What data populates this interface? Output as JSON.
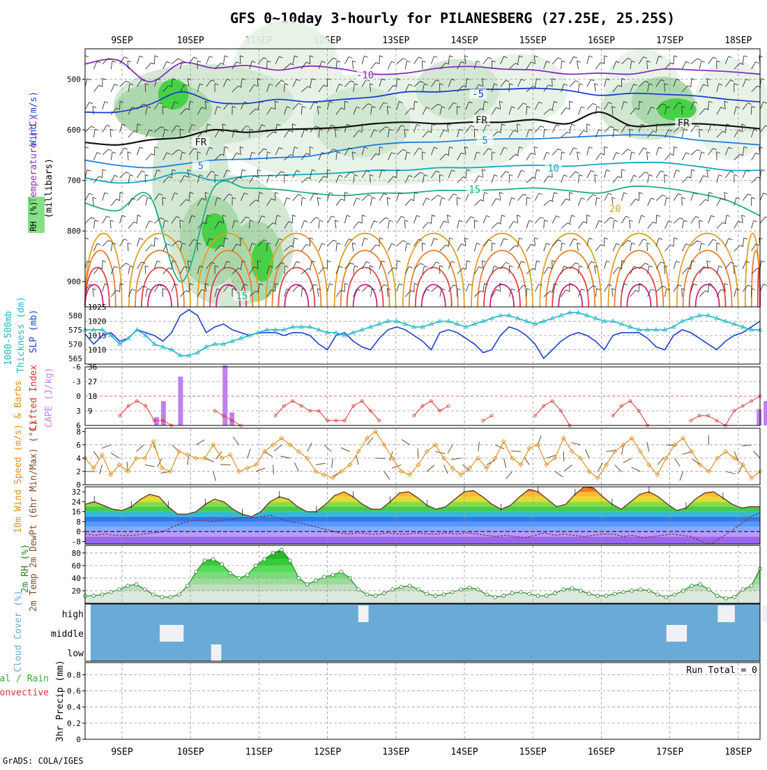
{
  "page": {
    "title": "GFS 0~10day 3-hourly for PILANESBERG (27.25E, 25.25S)",
    "credit": "GrADS: COLA/IGES"
  },
  "colors": {
    "grid": "#999999",
    "temperature_labels": "#e07030",
    "rh_green": "#33cc33",
    "slp": "#1a3fd0",
    "thickness": "#22b5c8",
    "lifted_index": "#e03030",
    "cape": "#c080f0",
    "wind_speed": "#e09020",
    "wind_barbs": "#6b4a2a",
    "rh2m": "#228822",
    "cloud_blue": "#6aaad6",
    "cloud_clear": "#f0f0f5",
    "precip_total": "#30b030",
    "precip_convective": "#e03030"
  },
  "chart_data": [
    {
      "type": "heatmap",
      "panel": "upper-air",
      "x_ticks": [
        "9SEP",
        "10SEP",
        "11SEP",
        "12SEP",
        "13SEP",
        "14SEP",
        "15SEP",
        "16SEP",
        "17SEP",
        "18SEP"
      ],
      "ylabel": "(millibars)",
      "y_ticks": [
        500,
        600,
        700,
        800,
        900
      ],
      "ylim": [
        440,
        950
      ],
      "legend": {
        "rh": "RH (%)",
        "temperature": "Temperature (°C)",
        "wind": "Wind (m/s)"
      },
      "contour_labels": [
        {
          "text": "-10",
          "color": "#8a2bbf",
          "day": 3.55,
          "p": 496
        },
        {
          "text": "-5",
          "color": "#1a3fd0",
          "day": 5.2,
          "p": 533
        },
        {
          "text": "FR",
          "color": "#111111",
          "day": 5.25,
          "p": 585
        },
        {
          "text": "FR",
          "color": "#111111",
          "day": 1.15,
          "p": 628
        },
        {
          "text": "FR",
          "color": "#111111",
          "day": 8.2,
          "p": 590
        },
        {
          "text": "5",
          "color": "#1e7fe0",
          "day": 5.3,
          "p": 625
        },
        {
          "text": "5",
          "color": "#1e7fe0",
          "day": 1.15,
          "p": 675
        },
        {
          "text": "10",
          "color": "#12a8c0",
          "day": 6.3,
          "p": 680
        },
        {
          "text": "15",
          "color": "#20b080",
          "day": 5.15,
          "p": 722
        },
        {
          "text": "20",
          "color": "#e0a020",
          "day": 7.2,
          "p": 760
        },
        {
          "text": "15",
          "color": "#20b080",
          "day": 1.75,
          "p": 932
        }
      ],
      "isotherms": [
        {
          "label": "-10",
          "color": "#8a2bbf",
          "p": [
            470,
            462,
            505,
            468,
            478,
            473,
            482,
            474,
            480,
            490,
            488,
            478,
            475,
            480,
            482,
            490,
            488,
            490,
            480,
            482,
            485,
            490
          ]
        },
        {
          "label": "-5",
          "color": "#1a3fd0",
          "p": [
            565,
            565,
            550,
            525,
            545,
            548,
            540,
            545,
            540,
            535,
            525,
            525,
            520,
            520,
            518,
            522,
            532,
            528,
            530,
            533,
            540,
            545
          ]
        },
        {
          "label": "FR",
          "color": "#111111",
          "p": [
            625,
            630,
            620,
            615,
            600,
            605,
            600,
            598,
            595,
            588,
            585,
            588,
            585,
            585,
            580,
            588,
            565,
            592,
            590,
            588,
            592,
            598
          ]
        },
        {
          "label": "5",
          "color": "#1e7fe0",
          "p": [
            660,
            670,
            675,
            668,
            660,
            658,
            655,
            652,
            640,
            630,
            625,
            624,
            620,
            618,
            618,
            615,
            612,
            610,
            612,
            620,
            625,
            630
          ]
        },
        {
          "label": "10",
          "color": "#12a8c0",
          "p": [
            695,
            705,
            700,
            685,
            700,
            692,
            690,
            688,
            685,
            680,
            680,
            675,
            675,
            672,
            670,
            672,
            668,
            665,
            665,
            672,
            680,
            680
          ]
        },
        {
          "label": "15",
          "color": "#20b080",
          "p": [
            745,
            760,
            730,
            900,
            715,
            715,
            718,
            725,
            730,
            725,
            725,
            720,
            720,
            718,
            715,
            720,
            725,
            712,
            715,
            725,
            740,
            770
          ]
        }
      ]
    },
    {
      "type": "line",
      "panel": "slp-thickness",
      "ylabel_left": "Thickness (dm)",
      "ylabel_left2": "1000-500mb",
      "ylabel_right": "SLP (mb)",
      "left_ticks": [
        565,
        570,
        575,
        580
      ],
      "right_ticks": [
        1010,
        1015,
        1020,
        1025
      ],
      "series": [
        {
          "name": "SLP (mb)",
          "axis": "right",
          "values": [
            1015.5,
            1012,
            1015,
            1016,
            1013,
            1014,
            1017,
            1016,
            1015,
            1013,
            1016,
            1022,
            1024,
            1022,
            1016,
            1018,
            1019,
            1017,
            1016,
            1015,
            1016,
            1016,
            1016,
            1015,
            1016,
            1016,
            1015,
            1012,
            1010,
            1015,
            1016,
            1013,
            1011,
            1010,
            1014,
            1017,
            1018,
            1017,
            1015,
            1013,
            1010,
            1016,
            1017,
            1016,
            1014,
            1012,
            1009,
            1010,
            1015,
            1018,
            1017,
            1015,
            1012,
            1007,
            1010,
            1013,
            1015,
            1016,
            1015,
            1013,
            1010,
            1015,
            1016,
            1016,
            1016,
            1014,
            1011,
            1010,
            1015,
            1017,
            1016,
            1014,
            1012,
            1010,
            1013,
            1015,
            1016,
            1018,
            1020
          ]
        },
        {
          "name": "Thickness (dm)",
          "axis": "left",
          "values": [
            575,
            575,
            575,
            573,
            570,
            572,
            575,
            573,
            570,
            569,
            568,
            566,
            566,
            567,
            569,
            570,
            570,
            571,
            572,
            573,
            574,
            575,
            575,
            575,
            576,
            576,
            576,
            575,
            574,
            574,
            573,
            574,
            575,
            576,
            577,
            578,
            578,
            577,
            576,
            576,
            577,
            578,
            578,
            577,
            576,
            577,
            578,
            579,
            580,
            580,
            579,
            578,
            577,
            578,
            579,
            580,
            581,
            581,
            580,
            579,
            578,
            578,
            577,
            576,
            575,
            575,
            575,
            575,
            576,
            578,
            579,
            580,
            580,
            579,
            578,
            577,
            576,
            575,
            575
          ]
        }
      ]
    },
    {
      "type": "bar",
      "panel": "lifted-index-cape",
      "ylabel_left": "Lifted Index",
      "ylabel_right": "CAPE (J/kg)",
      "left_ticks": [
        -6,
        -3,
        0,
        3,
        6
      ],
      "right_ticks": [
        9,
        18,
        27,
        36
      ],
      "cape_bars": [
        {
          "day": 0.5,
          "value": 5
        },
        {
          "day": 0.6,
          "value": 15
        },
        {
          "day": 0.85,
          "value": 30
        },
        {
          "day": 1.5,
          "value": 37
        },
        {
          "day": 1.6,
          "value": 8
        },
        {
          "day": 9.3,
          "value": 10
        },
        {
          "day": 9.4,
          "value": 15
        }
      ],
      "lifted_index": [
        null,
        null,
        null,
        null,
        4,
        2,
        1,
        2,
        5,
        5,
        6,
        null,
        null,
        null,
        null,
        3,
        4,
        5,
        6,
        null,
        null,
        null,
        4,
        2,
        1,
        2,
        3,
        3,
        5,
        5,
        5,
        2,
        1,
        3,
        5,
        null,
        null,
        null,
        4,
        2,
        1,
        3,
        2,
        null,
        null,
        null,
        5,
        4,
        null,
        null,
        null,
        null,
        4,
        2,
        1,
        3,
        6,
        null,
        null,
        null,
        null,
        4,
        2,
        1,
        3,
        6,
        null,
        null,
        null,
        null,
        5,
        4,
        4,
        5,
        6,
        3,
        2,
        1,
        0
      ]
    },
    {
      "type": "line",
      "panel": "wind-10m",
      "ylabel": "10m Wind Speed (m/s) & Barbs",
      "y_ticks": [
        0,
        2,
        4,
        6,
        8
      ],
      "series": [
        {
          "name": "10m Wind Speed",
          "values": [
            4,
            2.5,
            4.5,
            1.5,
            3,
            2,
            4,
            4,
            6.5,
            2.5,
            2,
            5,
            4.5,
            4,
            4,
            6,
            4,
            4.5,
            2,
            2.5,
            3,
            5,
            6,
            7,
            6,
            5,
            4,
            2,
            1.5,
            1,
            2,
            3,
            5,
            7,
            8,
            6,
            4,
            2,
            1.5,
            3,
            5,
            6,
            4,
            2.5,
            1.5,
            2.5,
            4,
            2.5,
            4,
            6.5,
            4,
            3,
            5.5,
            6,
            3,
            4,
            7,
            5,
            4,
            2,
            1,
            3,
            5,
            6,
            7,
            5,
            3,
            1.5,
            4,
            6,
            7,
            5,
            3,
            2,
            4,
            5,
            4,
            3,
            1,
            2
          ]
        }
      ]
    },
    {
      "type": "area",
      "panel": "temp-2m",
      "ylabel": "2m Temp 2m DewPt (6hr Min/Max) (°C)",
      "y_ticks": [
        -8,
        0,
        8,
        16,
        24,
        32
      ],
      "series": [
        {
          "name": "2m Temp",
          "values": [
            22,
            24,
            21,
            18,
            17,
            20,
            26,
            30,
            28,
            20,
            14,
            14,
            16,
            22,
            26,
            24,
            18,
            14,
            12,
            16,
            24,
            28,
            26,
            20,
            16,
            16,
            22,
            29,
            32,
            28,
            22,
            18,
            18,
            24,
            31,
            32,
            27,
            21,
            18,
            20,
            26,
            32,
            33,
            28,
            22,
            18,
            21,
            28,
            34,
            32,
            26,
            20,
            22,
            30,
            36,
            35,
            28,
            22,
            18,
            24,
            30,
            32,
            28,
            22,
            17,
            19,
            26,
            31,
            32,
            27,
            22,
            19,
            20,
            20
          ]
        },
        {
          "name": "2m DewPt",
          "values": [
            -2,
            -3,
            -2,
            -3,
            -3,
            -3,
            -2,
            -1,
            0,
            4,
            7,
            9,
            9,
            8,
            9,
            10,
            11,
            11,
            12,
            13,
            10,
            8,
            7,
            5,
            3,
            1,
            -1,
            -2,
            -1,
            -2,
            -2,
            -1,
            -2,
            -2,
            -1,
            -2,
            -2,
            -1,
            -2,
            -1,
            -2,
            -3,
            -4,
            -3,
            -4,
            -5,
            -3,
            -1,
            -3,
            -2,
            -3,
            -4,
            -3,
            -2,
            -2,
            -4,
            -3,
            -5,
            -4,
            -3,
            -2,
            -3,
            -4,
            -8,
            -10,
            -5,
            0,
            6,
            12,
            15
          ]
        }
      ]
    },
    {
      "type": "area",
      "panel": "rh-2m",
      "ylabel": "2m RH (%)",
      "y_ticks": [
        20,
        40,
        60,
        80
      ],
      "series": [
        {
          "name": "2m RH",
          "values": [
            12,
            12,
            14,
            18,
            22,
            28,
            30,
            22,
            14,
            10,
            10,
            14,
            28,
            50,
            68,
            70,
            62,
            48,
            40,
            45,
            60,
            70,
            80,
            85,
            68,
            40,
            30,
            36,
            42,
            45,
            50,
            40,
            22,
            14,
            12,
            16,
            22,
            26,
            28,
            22,
            15,
            12,
            14,
            18,
            22,
            25,
            22,
            14,
            10,
            12,
            16,
            18,
            15,
            12,
            12,
            16,
            22,
            24,
            20,
            15,
            12,
            12,
            15,
            18,
            20,
            22,
            20,
            14,
            10,
            14,
            20,
            28,
            30,
            22,
            12,
            8,
            10,
            22,
            28,
            55
          ]
        }
      ]
    },
    {
      "type": "heatmap",
      "panel": "cloud-cover",
      "ylabel": "Cloud Cover (%)",
      "levels": [
        "high",
        "middle",
        "low"
      ],
      "clear_cells": [
        {
          "level": "middle",
          "day": 0.55,
          "width": 0.35
        },
        {
          "level": "low",
          "day": 1.3,
          "width": 0.15
        },
        {
          "level": "high",
          "day": 3.45,
          "width": 0.15
        },
        {
          "level": "high",
          "day": 8.7,
          "width": 0.25
        },
        {
          "level": "high",
          "day": 9.35,
          "width": 0.45
        },
        {
          "level": "middle",
          "day": 7.95,
          "width": 0.3
        }
      ]
    },
    {
      "type": "bar",
      "panel": "precip",
      "ylabel": "3hr Precip (mm)",
      "legend_total": "Total / Rain",
      "legend_convective": "Convective",
      "y_ticks": [
        0,
        0.2,
        0.4,
        0.6,
        0.8
      ],
      "run_total": "Run Total = 0",
      "values": []
    }
  ]
}
